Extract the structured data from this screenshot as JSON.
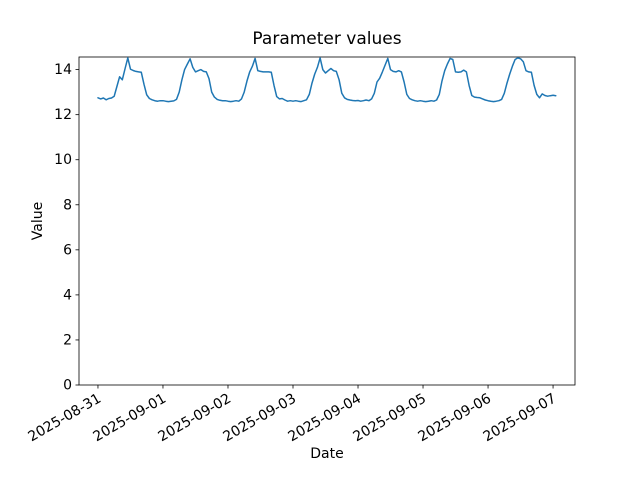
{
  "chart_data": {
    "type": "line",
    "title": "Parameter values",
    "xlabel": "Date",
    "ylabel": "Value",
    "line_color": "#1f77b4",
    "background_color": "#ffffff",
    "grid": false,
    "legend": null,
    "x_start": "2025-08-31 00:00",
    "x_step_hours": 1,
    "x_tick_labels": [
      "2025-08-31",
      "2025-09-01",
      "2025-09-02",
      "2025-09-03",
      "2025-09-04",
      "2025-09-05",
      "2025-09-06",
      "2025-09-07"
    ],
    "x_tick_hours": [
      0,
      24,
      48,
      72,
      96,
      120,
      144,
      168
    ],
    "x_tick_rotation_deg": 30,
    "y_ticks": [
      0,
      2,
      4,
      6,
      8,
      10,
      12,
      14
    ],
    "ylim": [
      0,
      14.56
    ],
    "xlim_hours": [
      -7,
      176.1
    ],
    "values": [
      12.75,
      12.7,
      12.74,
      12.66,
      12.72,
      12.74,
      12.82,
      13.25,
      13.68,
      13.55,
      14.05,
      14.52,
      14.02,
      13.96,
      13.92,
      13.9,
      13.88,
      13.35,
      12.88,
      12.72,
      12.66,
      12.62,
      12.6,
      12.62,
      12.62,
      12.6,
      12.58,
      12.6,
      12.61,
      12.68,
      13.0,
      13.55,
      14.0,
      14.25,
      14.48,
      14.1,
      13.9,
      13.95,
      14.0,
      13.92,
      13.9,
      13.6,
      13.0,
      12.78,
      12.68,
      12.64,
      12.62,
      12.62,
      12.6,
      12.58,
      12.6,
      12.62,
      12.6,
      12.7,
      13.0,
      13.5,
      13.9,
      14.15,
      14.5,
      13.95,
      13.92,
      13.9,
      13.9,
      13.9,
      13.88,
      13.3,
      12.8,
      12.7,
      12.72,
      12.65,
      12.6,
      12.62,
      12.6,
      12.62,
      12.6,
      12.58,
      12.62,
      12.66,
      12.9,
      13.4,
      13.8,
      14.1,
      14.52,
      14.0,
      13.85,
      13.95,
      14.05,
      13.95,
      13.92,
      13.55,
      12.95,
      12.75,
      12.68,
      12.65,
      12.63,
      12.62,
      12.63,
      12.6,
      12.62,
      12.65,
      12.62,
      12.7,
      12.95,
      13.45,
      13.62,
      13.9,
      14.2,
      14.5,
      14.0,
      13.92,
      13.9,
      13.95,
      13.9,
      13.45,
      12.9,
      12.72,
      12.66,
      12.62,
      12.6,
      12.62,
      12.6,
      12.58,
      12.6,
      12.62,
      12.6,
      12.65,
      12.9,
      13.5,
      13.95,
      14.25,
      14.5,
      14.45,
      13.9,
      13.88,
      13.9,
      13.98,
      13.9,
      13.3,
      12.85,
      12.78,
      12.76,
      12.75,
      12.7,
      12.65,
      12.62,
      12.6,
      12.58,
      12.6,
      12.62,
      12.68,
      12.95,
      13.4,
      13.8,
      14.15,
      14.45,
      14.52,
      14.48,
      14.35,
      13.95,
      13.9,
      13.88,
      13.3,
      12.9,
      12.75,
      12.92,
      12.85,
      12.82,
      12.84,
      12.86,
      12.84
    ]
  }
}
